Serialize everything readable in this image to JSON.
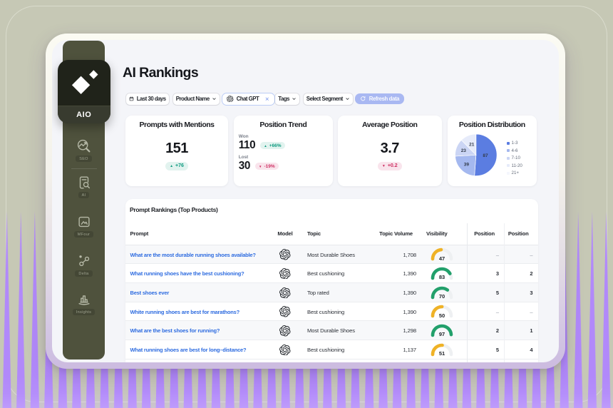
{
  "colors": {
    "accent_blue": "#5b7de1",
    "teal": "#0f9b80",
    "red": "#ce2f62",
    "gauge_green": "#22a06b",
    "gauge_amber": "#efb226",
    "gauge_track": "#eef0f2",
    "purple_stripe": "#b38cfa",
    "sidebar": "#4f523d",
    "link_blue": "#2e6ce0"
  },
  "logo": {
    "label": "AIO"
  },
  "sidebar": {
    "items": [
      {
        "icon": "seo-search-icon",
        "label": "SEO"
      },
      {
        "icon": "doc-search-icon",
        "label": "AI"
      },
      {
        "icon": "frame-icon",
        "label": "MFour"
      },
      {
        "icon": "nodes-icon",
        "label": "Delta"
      },
      {
        "icon": "podium-icon",
        "label": "Insights"
      }
    ]
  },
  "header": {
    "title": "AI Rankings"
  },
  "filters": {
    "date_range": "Last 30 days",
    "product": "Product Name",
    "model_chip": "Chat GPT",
    "tags": "Tags",
    "segment": "Select Segment",
    "refresh": "Refresh data"
  },
  "stats": {
    "mentions": {
      "title": "Prompts with Mentions",
      "value": "151",
      "delta": "+76",
      "direction": "up"
    },
    "trend": {
      "title": "Position Trend",
      "won_label": "Won",
      "won_value": "110",
      "won_delta": "+66%",
      "won_direction": "up",
      "lost_label": "Lost",
      "lost_value": "30",
      "lost_delta": "-19%",
      "lost_direction": "down"
    },
    "average": {
      "title": "Average Position",
      "value": "3.7",
      "delta": "+0.2",
      "direction": "down"
    },
    "distribution": {
      "title": "Position Distribution"
    }
  },
  "chart_data": {
    "type": "pie",
    "title": "Position Distribution",
    "legend_position": "right",
    "slices": [
      {
        "label": "1-3",
        "value": 87,
        "color": "#5b7de1",
        "text": "87",
        "label_r": 0.45
      },
      {
        "label": "4-6",
        "value": 39,
        "color": "#a4b8ef",
        "text": "39",
        "label_r": 0.64
      },
      {
        "label": "7-10",
        "value": 23,
        "color": "#cbd5f4",
        "text": "23",
        "label_r": 0.64
      },
      {
        "label": "11-20",
        "value": 21,
        "color": "#e6ebfa",
        "text": "21",
        "label_r": 0.55
      }
    ],
    "legend": [
      {
        "label": "1-3",
        "color": "#5b7de1"
      },
      {
        "label": "4-6",
        "color": "#a4b8ef"
      },
      {
        "label": "7-10",
        "color": "#cbd5f4"
      },
      {
        "label": "11-20",
        "color": "#e6ebfa"
      },
      {
        "label": "21+",
        "color": "#f4f6fd"
      }
    ]
  },
  "table": {
    "title": "Prompt Rankings (Top Products)",
    "columns": [
      "Prompt",
      "Model",
      "Topic",
      "Topic Volume",
      "Visibility",
      "Position",
      "Position"
    ],
    "rows": [
      {
        "prompt": "What are the most durable running shoes available?",
        "model": "Chat GPT",
        "topic": "Most Durable Shoes",
        "volume": "1,708",
        "visibility": 47,
        "pos1": "–",
        "pos2": "–"
      },
      {
        "prompt": "What running shoes have the best cushioning?",
        "model": "Chat GPT",
        "topic": "Best cushioning",
        "volume": "1,390",
        "visibility": 83,
        "pos1": "3",
        "pos2": "2"
      },
      {
        "prompt": "Best shoes ever",
        "model": "Chat GPT",
        "topic": "Top rated",
        "volume": "1,390",
        "visibility": 70,
        "pos1": "5",
        "pos2": "3"
      },
      {
        "prompt": "White running shoes are best for marathons?",
        "model": "Chat GPT",
        "topic": "Best cushioning",
        "volume": "1,390",
        "visibility": 50,
        "pos1": "–",
        "pos2": "–"
      },
      {
        "prompt": "What are the best shoes for running?",
        "model": "Chat GPT",
        "topic": "Most Durable Shoes",
        "volume": "1,298",
        "visibility": 97,
        "pos1": "2",
        "pos2": "1"
      },
      {
        "prompt": "What running shoes are best for long–distance?",
        "model": "Chat GPT",
        "topic": "Best cushioning",
        "volume": "1,137",
        "visibility": 51,
        "pos1": "5",
        "pos2": "4"
      }
    ]
  }
}
